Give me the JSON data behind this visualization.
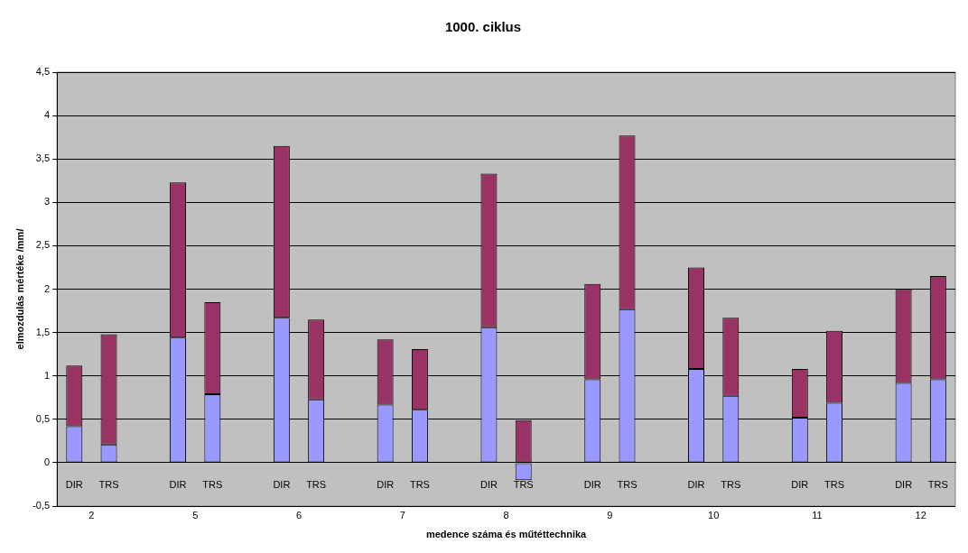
{
  "chart_data": {
    "type": "bar",
    "title": "1000. ciklus",
    "xlabel": "medence száma és műtéttechnika",
    "ylabel": "elmozdulás mértéke /mm/",
    "categories": [
      "DIR",
      "TRS",
      null,
      "DIR",
      "TRS",
      null,
      "DIR",
      "TRS",
      null,
      "DIR",
      "TRS",
      null,
      "DIR",
      "TRS",
      null,
      "DIR",
      "TRS",
      null,
      "DIR",
      "TRS",
      null,
      "DIR",
      "TRS",
      null,
      "DIR",
      "TRS"
    ],
    "series": [
      {
        "color": "#9999ff",
        "values": [
          0.42,
          0.21,
          null,
          1.44,
          0.79,
          null,
          1.67,
          0.73,
          null,
          0.67,
          0.61,
          null,
          1.56,
          -0.2,
          null,
          0.96,
          1.77,
          null,
          1.08,
          0.77,
          null,
          0.52,
          0.69,
          null,
          0.92,
          0.96
        ]
      },
      {
        "color": "#993366",
        "values": [
          0.7,
          1.27,
          null,
          1.79,
          1.06,
          null,
          1.98,
          0.92,
          null,
          0.75,
          0.7,
          null,
          1.77,
          0.49,
          null,
          1.1,
          2.0,
          null,
          1.17,
          0.9,
          null,
          0.56,
          0.83,
          null,
          1.08,
          1.19
        ]
      }
    ],
    "stacked": true,
    "ylim": [
      -0.5,
      4.5
    ],
    "yticks": [
      {
        "value": -0.5,
        "label": "-0,5"
      },
      0,
      {
        "value": 0.5,
        "label": "0,5"
      },
      1,
      {
        "value": 1.5,
        "label": "1,5"
      },
      2,
      {
        "value": 2.5,
        "label": "2,5"
      },
      3,
      {
        "value": 3.5,
        "label": "3,5"
      },
      4,
      {
        "value": 4.5,
        "label": "4,5"
      }
    ],
    "grid": "y",
    "annotations": [
      "2",
      "5",
      "6",
      "7",
      "8",
      "9",
      "10",
      "11",
      "12"
    ]
  }
}
